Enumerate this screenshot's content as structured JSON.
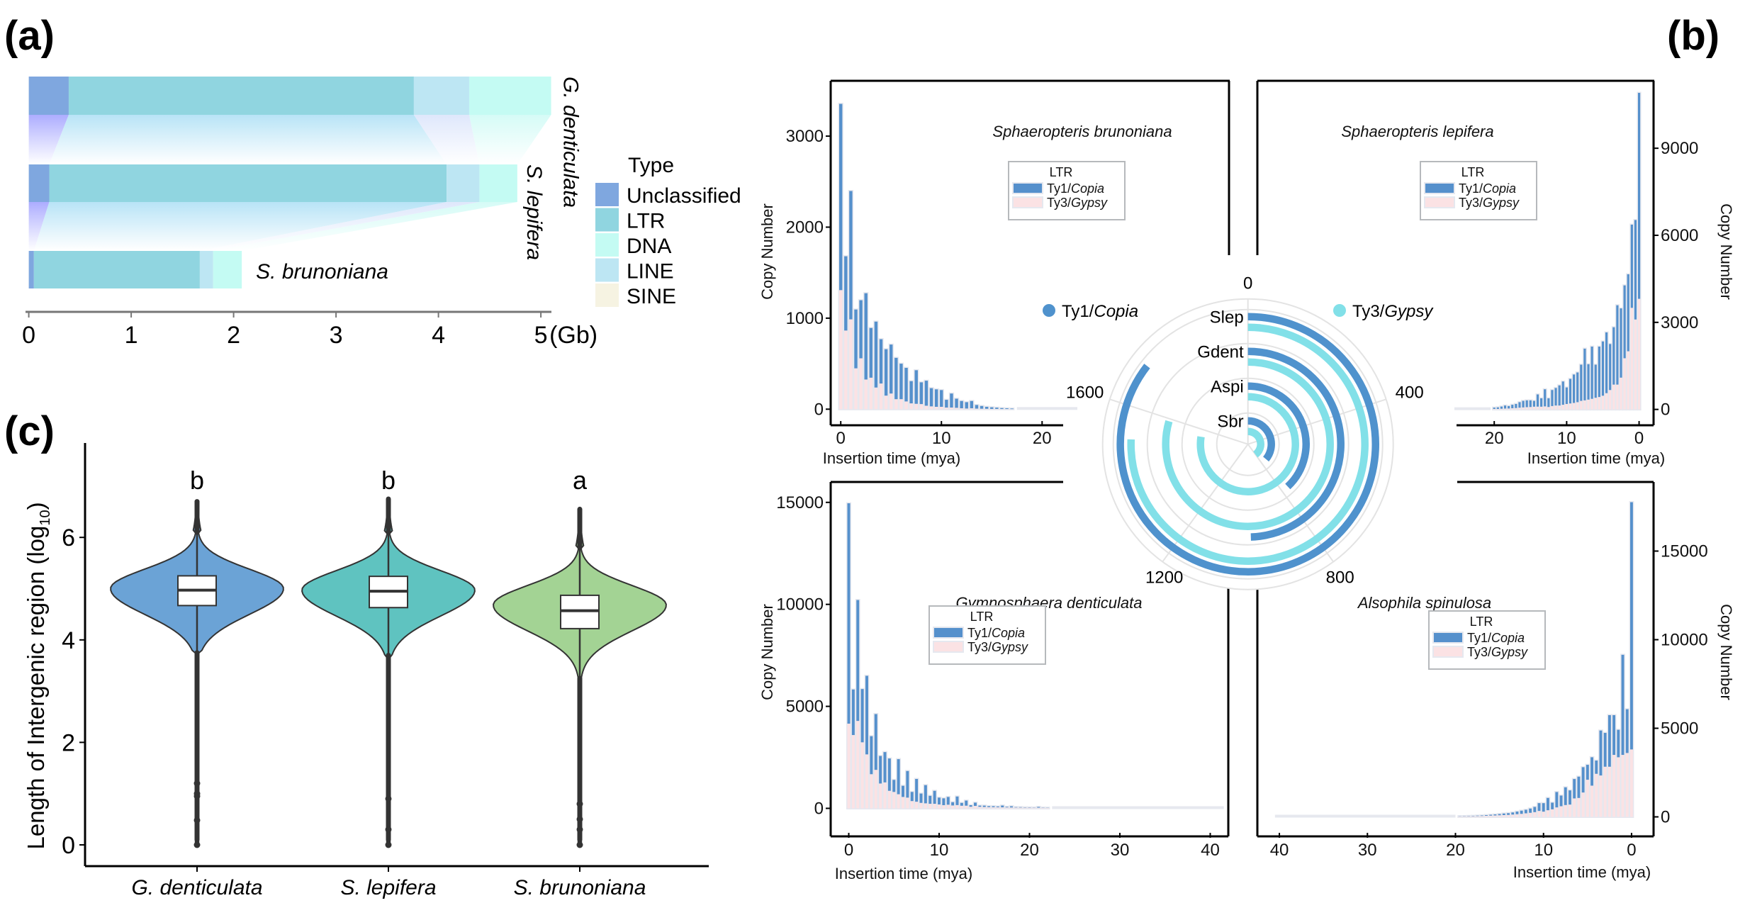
{
  "panel_labels": {
    "a": "(a)",
    "b": "(b)",
    "c": "(c)"
  },
  "chart_data": [
    {
      "id": "a",
      "type": "bar",
      "orientation": "horizontal-stacked",
      "title": "",
      "xlabel": "(Gb)",
      "xlim": [
        0,
        5.3
      ],
      "xticks": [
        "0",
        "1",
        "2",
        "3",
        "4",
        "5"
      ],
      "legend_title": "Type",
      "legend_position": "right",
      "types": [
        {
          "name": "Unclassified",
          "color": "#7fa7df"
        },
        {
          "name": "LTR",
          "color": "#90d5e0"
        },
        {
          "name": "DNA",
          "color": "#c4fbf3"
        },
        {
          "name": "LINE",
          "color": "#bde6f3"
        },
        {
          "name": "SINE",
          "color": "#f6f3e2"
        }
      ],
      "segment_order": [
        "Unclassified",
        "LTR",
        "LINE",
        "DNA"
      ],
      "categories": [
        "G. denticulata",
        "S. lepifera",
        "S. brunoniana"
      ],
      "series": [
        {
          "name": "Unclassified",
          "values": [
            0.39,
            0.2,
            0.05
          ]
        },
        {
          "name": "LTR",
          "values": [
            3.37,
            3.88,
            1.62
          ]
        },
        {
          "name": "LINE",
          "values": [
            0.54,
            0.32,
            0.13
          ]
        },
        {
          "name": "DNA",
          "values": [
            0.8,
            0.37,
            0.28
          ]
        },
        {
          "name": "SINE",
          "values": [
            0,
            0,
            0
          ]
        }
      ]
    },
    {
      "id": "c",
      "type": "violin",
      "ylabel": "Length of Intergenic region (log",
      "ylabel_sub": "10",
      "ylabel_end": ")",
      "ylim": [
        -0.3,
        7.3
      ],
      "yticks": [
        0,
        2,
        4,
        6
      ],
      "categories": [
        "G. denticulata",
        "S. lepifera",
        "S. brunoniana"
      ],
      "colors": [
        "#6ba3d6",
        "#5fc3c0",
        "#a3d394"
      ],
      "significance": [
        "b",
        "b",
        "a"
      ],
      "box": [
        {
          "q1": 4.67,
          "median": 4.97,
          "q3": 5.25,
          "whisker_high": 6.1,
          "whisker_low": 3.75
        },
        {
          "q1": 4.63,
          "median": 4.95,
          "q3": 5.24,
          "whisker_high": 6.1,
          "whisker_low": 3.7
        },
        {
          "q1": 4.22,
          "median": 4.57,
          "q3": 4.87,
          "whisker_high": 5.8,
          "whisker_low": 3.25
        }
      ],
      "density_peak": [
        5.0,
        4.97,
        4.68
      ],
      "max": [
        6.7,
        6.75,
        6.55
      ],
      "min": [
        0,
        0,
        0
      ],
      "outliers_low": [
        [
          0.0,
          0.48,
          0.95,
          1.0,
          1.2
        ],
        [
          0.0,
          0.3,
          0.9
        ],
        [
          0.0,
          0.3,
          0.5,
          0.8
        ]
      ]
    },
    {
      "id": "b-sbr",
      "type": "bar",
      "stacked": true,
      "title": "Sphaeropteris brunoniana",
      "xlabel": "Insertion time (mya)",
      "ylabel": "Copy Number",
      "x_direction": "normal",
      "xlim": [
        -1,
        23.5
      ],
      "ylim": [
        -130,
        3600
      ],
      "xticks": [
        0,
        10,
        20
      ],
      "yticks": [
        0,
        1000,
        2000,
        3000
      ],
      "bin_width": 0.5,
      "legend_title": "LTR",
      "series": [
        {
          "name": "Ty1/Copia",
          "values": [
            2046,
            816,
            1410,
            646,
            638,
            948,
            546,
            724,
            487,
            510,
            538,
            454,
            390,
            369,
            244,
            369,
            239,
            275,
            200,
            192,
            184,
            85,
            154,
            100,
            80,
            70,
            80,
            40,
            30,
            22,
            18,
            14,
            10,
            8,
            6
          ]
        },
        {
          "name": "Ty3/Gypsy",
          "values": [
            1308,
            864,
            987,
            449,
            559,
            326,
            346,
            238,
            282,
            149,
            172,
            110,
            110,
            85,
            64,
            59,
            56,
            38,
            31,
            26,
            26,
            18,
            18,
            15,
            10,
            7,
            10,
            6,
            5,
            4,
            3,
            3,
            2,
            2,
            1
          ]
        }
      ]
    },
    {
      "id": "b-slep",
      "type": "bar",
      "stacked": true,
      "title": "Sphaeropteris lepifera",
      "xlabel": "Insertion time (mya)",
      "ylabel": "Copy Number",
      "x_direction": "reversed",
      "xlim": [
        25.5,
        -2
      ],
      "ylim": [
        -400,
        11300
      ],
      "xticks": [
        20,
        10,
        0
      ],
      "yticks": [
        0,
        3000,
        6000,
        9000
      ],
      "bin_width": 0.5,
      "legend_title": "LTR",
      "series": [
        {
          "name": "Ty1/Copia",
          "values": [
            7097,
            3428,
            2867,
            2653,
            2511,
            2387,
            2734,
            1977,
            1585,
            2094,
            1870,
            1737,
            1140,
            1799,
            1220,
            1781,
            1247,
            1024,
            979,
            846,
            570,
            802,
            694,
            605,
            552,
            300,
            590,
            290,
            420,
            200,
            230,
            235,
            225,
            190,
            140,
            120,
            85,
            105,
            75,
            55,
            45
          ]
        },
        {
          "name": "Ty3/Gypsy",
          "values": [
            3811,
            3099,
            3500,
            2004,
            1763,
            1095,
            855,
            855,
            668,
            560,
            472,
            427,
            401,
            365,
            338,
            312,
            294,
            249,
            223,
            205,
            187,
            160,
            134,
            134,
            116,
            83,
            104,
            93,
            96,
            94,
            82,
            77,
            69,
            59,
            47,
            40,
            31,
            29,
            23,
            16,
            17
          ]
        }
      ]
    },
    {
      "id": "b-gdent",
      "type": "bar",
      "stacked": true,
      "title": "Gymnosphaera denticulata",
      "xlabel": "Insertion time (mya)",
      "ylabel": "Copy Number",
      "x_direction": "normal",
      "xlim": [
        -2,
        42
      ],
      "ylim": [
        -1200,
        16000
      ],
      "xticks": [
        0,
        10,
        20,
        30,
        40
      ],
      "yticks": [
        0,
        5000,
        10000,
        15000
      ],
      "bin_width": 0.5,
      "legend_title": "LTR",
      "series": [
        {
          "name": "Ty1/Copia",
          "values": [
            10803,
            2232,
            5926,
            2611,
            3851,
            1864,
            2735,
            1350,
            1485,
            1585,
            591,
            1719,
            547,
            1305,
            447,
            1116,
            457,
            892,
            391,
            636,
            335,
            335,
            380,
            160,
            420,
            140,
            250,
            80,
            160,
            60,
            70,
            50,
            50,
            40,
            90,
            30,
            60,
            20,
            20,
            15,
            15,
            10,
            40,
            10,
            8
          ]
        },
        {
          "name": "Ty3/Gypsy",
          "values": [
            4152,
            3594,
            4286,
            3237,
            2645,
            1674,
            1886,
            1217,
            1272,
            859,
            804,
            692,
            558,
            525,
            357,
            324,
            268,
            246,
            223,
            223,
            190,
            156,
            178,
            141,
            160,
            128,
            130,
            76,
            119,
            74,
            64,
            58,
            55,
            52,
            48,
            45,
            42,
            40,
            38,
            35,
            32,
            30,
            30,
            28,
            26
          ]
        }
      ]
    },
    {
      "id": "b-aspi",
      "type": "bar",
      "stacked": true,
      "title": "Alsophila spinulosa",
      "xlabel": "Insertion time (mya)",
      "ylabel": "Copy Number",
      "x_direction": "reversed",
      "xlim": [
        42.5,
        -2.5
      ],
      "ylim": [
        -900,
        18900
      ],
      "xticks": [
        40,
        30,
        20,
        10,
        0
      ],
      "yticks": [
        0,
        5000,
        10000,
        15000
      ],
      "bin_width": 0.5,
      "legend_title": "LTR",
      "series": [
        {
          "name": "Ty1/Copia",
          "values": [
            13953,
            2470,
            5648,
            1549,
            2243,
            2911,
            1909,
            2537,
            748,
            1602,
            841,
            1429,
            1202,
            1095,
            801,
            1001,
            601,
            868,
            374,
            694,
            480,
            440,
            294,
            240,
            200,
            180,
            150,
            120,
            100,
            90,
            70,
            60,
            50,
            40,
            30,
            25,
            20,
            15,
            12,
            10
          ]
        },
        {
          "name": "Ty3/Gypsy",
          "values": [
            3805,
            3605,
            3498,
            3364,
            3498,
            2830,
            2830,
            2336,
            2430,
            1762,
            2096,
            1375,
            1068,
            1041,
            694,
            668,
            601,
            534,
            427,
            374,
            294,
            334,
            267,
            230,
            200,
            170,
            150,
            130,
            110,
            100,
            90,
            80,
            70,
            60,
            50,
            45,
            40,
            35,
            30,
            25
          ]
        }
      ]
    },
    {
      "id": "b-polar",
      "type": "radial-bar",
      "full_circle_value": 2000,
      "angle_ticks": [
        "0",
        "400",
        "800",
        "1200",
        "1600"
      ],
      "angle_tick_values": [
        0,
        400,
        800,
        1200,
        1600
      ],
      "rings": [
        "Slep",
        "Gdent",
        "Aspi",
        "Sbr"
      ],
      "legend": [
        {
          "name_plain": "Ty1/",
          "name_italic": "Copia",
          "color": "#4f92cd"
        },
        {
          "name_plain": "Ty3/",
          "name_italic": "Gypsy",
          "color": "#82e0e8"
        }
      ],
      "series": [
        {
          "name": "Ty1/Copia",
          "values": {
            "Slep": 1710,
            "Gdent": 990,
            "Aspi": 760,
            "Sbr": 720
          }
        },
        {
          "name": "Ty3/Gypsy",
          "values": {
            "Slep": 1513,
            "Gdent": 1590,
            "Aspi": 1550,
            "Sbr": 800
          }
        }
      ]
    }
  ],
  "hist_legend": {
    "title": "LTR",
    "items": [
      {
        "plain": "Ty1/",
        "italic": "Copia",
        "color": "#5590cc"
      },
      {
        "plain": "Ty3/",
        "italic": "Gypsy",
        "color": "#fbe2e4"
      }
    ]
  },
  "colors": {
    "copia_bar": "#5590cc",
    "gypsy_bar": "#fbe2e4",
    "bar_halo": "#e6e8ef",
    "grid": "#e3e3e3",
    "axis": "#000000"
  }
}
